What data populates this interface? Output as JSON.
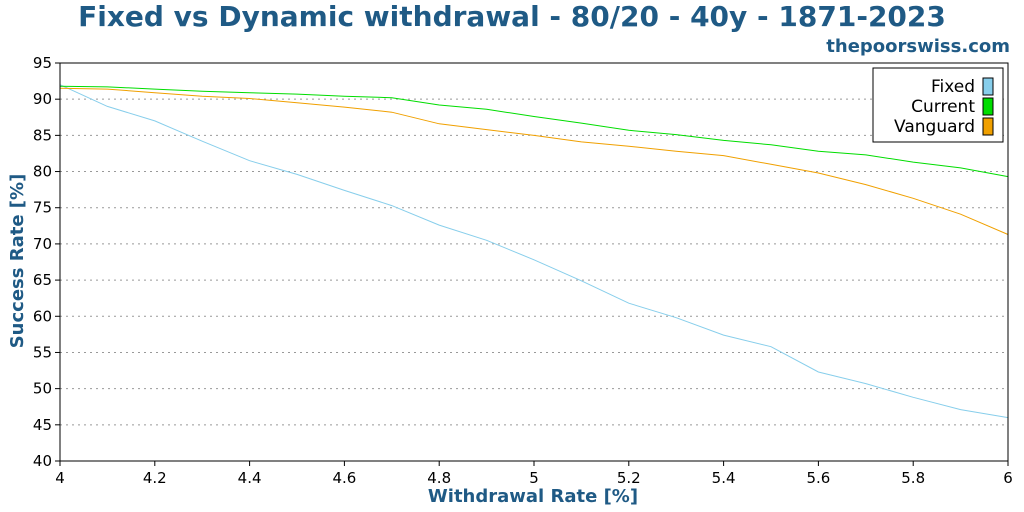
{
  "title": "Fixed vs Dynamic withdrawal - 80/20 - 40y - 1871-2023",
  "site": "thepoorswiss.com",
  "chart_data": {
    "type": "line",
    "xlabel": "Withdrawal Rate [%]",
    "ylabel": "Success Rate [%]",
    "xlim": [
      4,
      6
    ],
    "ylim": [
      40,
      95
    ],
    "xticks": [
      4,
      4.2,
      4.4,
      4.6,
      4.8,
      5,
      5.2,
      5.4,
      5.6,
      5.8,
      6
    ],
    "yticks": [
      40,
      45,
      50,
      55,
      60,
      65,
      70,
      75,
      80,
      85,
      90,
      95
    ],
    "grid": "horizontal dotted",
    "legend_position": "top-right",
    "x": [
      4.0,
      4.1,
      4.2,
      4.3,
      4.4,
      4.5,
      4.6,
      4.7,
      4.8,
      4.9,
      5.0,
      5.1,
      5.2,
      5.3,
      5.4,
      5.5,
      5.6,
      5.7,
      5.8,
      5.9,
      6.0
    ],
    "series": [
      {
        "name": "Fixed",
        "color": "#87ceeb",
        "values": [
          92.0,
          89.0,
          87.0,
          84.2,
          81.5,
          79.6,
          77.4,
          75.3,
          72.6,
          70.5,
          67.8,
          64.9,
          61.8,
          59.8,
          57.4,
          55.8,
          52.3,
          50.7,
          48.8,
          47.1,
          46.0
        ]
      },
      {
        "name": "Current",
        "color": "#00dd00",
        "values": [
          91.8,
          91.7,
          91.4,
          91.1,
          90.9,
          90.7,
          90.4,
          90.2,
          89.2,
          88.6,
          87.6,
          86.7,
          85.7,
          85.1,
          84.3,
          83.7,
          82.8,
          82.3,
          81.3,
          80.5,
          79.3
        ]
      },
      {
        "name": "Vanguard",
        "color": "#f0a000",
        "values": [
          91.5,
          91.4,
          90.9,
          90.4,
          90.1,
          89.5,
          88.9,
          88.2,
          86.6,
          85.8,
          85.0,
          84.1,
          83.5,
          82.8,
          82.2,
          81.0,
          79.8,
          78.2,
          76.3,
          74.1,
          71.3
        ]
      }
    ]
  }
}
